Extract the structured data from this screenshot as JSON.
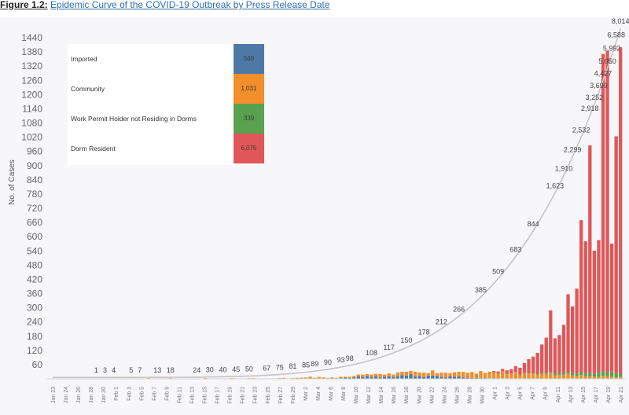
{
  "caption": {
    "fig_num": "Figure 1.2:",
    "fig_title": "Epidemic Curve of the COVID-19 Outbreak by Press Release Date"
  },
  "legend": [
    {
      "label": "Imported",
      "value": "569",
      "color": "#4e79a7"
    },
    {
      "label": "Community",
      "value": "1,031",
      "color": "#f28e2b"
    },
    {
      "label": "Work Permit Holder not Residing in Dorms",
      "value": "339",
      "color": "#59a14f"
    },
    {
      "label": "Dorm Resident",
      "value": "6,075",
      "color": "#e15759"
    }
  ],
  "chart_data": {
    "type": "bar",
    "stacked": true,
    "ylabel": "No. of Cases",
    "ylim": [
      0,
      1480
    ],
    "yticks": [
      60,
      120,
      180,
      240,
      300,
      360,
      420,
      480,
      540,
      600,
      660,
      720,
      780,
      840,
      900,
      960,
      1020,
      1080,
      1140,
      1200,
      1260,
      1320,
      1380,
      1440
    ],
    "grid": false,
    "legend_position": "top-left",
    "x_tick_labels": [
      "Jan 23",
      "Jan 24",
      "Jan 26",
      "Jan 28",
      "Jan 30",
      "Feb 1",
      "Feb 3",
      "Feb 5",
      "Feb 7",
      "Feb 9",
      "Feb 11",
      "Feb 13",
      "Feb 15",
      "Feb 17",
      "Feb 19",
      "Feb 21",
      "Feb 23",
      "Feb 25",
      "Feb 27",
      "Feb 29",
      "Mar 2",
      "Mar 4",
      "Mar 6",
      "Mar 8",
      "Mar 10",
      "Mar 12",
      "Mar 14",
      "Mar 16",
      "Mar 18",
      "Mar 20",
      "Mar 22",
      "Mar 24",
      "Mar 26",
      "Mar 28",
      "Mar 30",
      "Apr 1",
      "Apr 3",
      "Apr 5",
      "Apr 7",
      "Apr 9",
      "Apr 11",
      "Apr 13",
      "Apr 15",
      "Apr 17",
      "Apr 19",
      "Apr 21"
    ],
    "series": [
      {
        "name": "Imported",
        "color": "#4e79a7",
        "values": [
          1,
          0,
          1,
          1,
          1,
          0,
          1,
          1,
          0,
          0,
          0,
          0,
          0,
          0,
          0,
          0,
          0,
          0,
          0,
          0,
          0,
          0,
          0,
          0,
          0,
          0,
          0,
          0,
          0,
          0,
          0,
          0,
          0,
          0,
          0,
          0,
          0,
          0,
          0,
          0,
          0,
          0,
          0,
          0,
          0,
          0,
          0,
          0,
          0,
          0,
          0,
          0,
          0,
          0,
          0,
          0,
          0,
          0,
          0,
          0,
          0,
          0,
          0,
          0,
          1,
          1,
          3,
          5,
          4,
          6,
          10,
          8,
          12,
          8,
          10,
          6,
          9,
          11,
          8,
          12,
          16,
          14,
          20,
          10,
          12,
          8,
          14,
          14,
          12,
          8,
          6,
          10,
          9,
          10,
          5,
          6,
          4,
          4,
          3,
          3,
          2,
          3,
          1,
          2,
          1,
          1,
          1,
          1,
          1,
          1,
          1,
          0,
          1,
          0,
          1,
          0,
          1,
          0,
          0,
          0,
          0,
          0,
          0,
          0,
          0,
          0,
          0,
          0,
          0,
          0,
          0
        ]
      },
      {
        "name": "Community",
        "color": "#f28e2b",
        "values": [
          0,
          0,
          0,
          0,
          0,
          0,
          0,
          0,
          1,
          1,
          2,
          1,
          1,
          1,
          2,
          2,
          0,
          1,
          2,
          2,
          1,
          1,
          3,
          1,
          1,
          2,
          2,
          3,
          2,
          1,
          0,
          1,
          1,
          1,
          1,
          3,
          1,
          2,
          1,
          1,
          1,
          3,
          2,
          1,
          1,
          3,
          3,
          0,
          0,
          1,
          0,
          2,
          3,
          4,
          1,
          3,
          4,
          5,
          6,
          9,
          4,
          8,
          6,
          3,
          5,
          2,
          6,
          4,
          5,
          6,
          8,
          10,
          8,
          10,
          11,
          14,
          9,
          12,
          10,
          15,
          14,
          16,
          13,
          20,
          15,
          18,
          10,
          22,
          12,
          18,
          20,
          14,
          19,
          20,
          24,
          20,
          25,
          18,
          30,
          22,
          28,
          25,
          22,
          30,
          20,
          20,
          28,
          15,
          24,
          22,
          20,
          18,
          20,
          21,
          23,
          15,
          16,
          18,
          21,
          14,
          12,
          16,
          11,
          10,
          9,
          8,
          12,
          10,
          9,
          6,
          8
        ]
      },
      {
        "name": "Work Permit Holder not Residing in Dorms",
        "color": "#59a14f",
        "values": [
          0,
          0,
          0,
          0,
          0,
          0,
          0,
          0,
          0,
          0,
          0,
          0,
          0,
          0,
          0,
          0,
          0,
          0,
          0,
          0,
          0,
          0,
          0,
          0,
          0,
          0,
          0,
          0,
          0,
          0,
          0,
          0,
          0,
          0,
          0,
          0,
          0,
          0,
          0,
          0,
          0,
          0,
          0,
          0,
          0,
          0,
          0,
          0,
          0,
          0,
          0,
          0,
          0,
          0,
          0,
          0,
          0,
          0,
          0,
          0,
          0,
          0,
          0,
          0,
          0,
          0,
          0,
          0,
          0,
          0,
          0,
          0,
          0,
          0,
          0,
          0,
          0,
          0,
          0,
          0,
          0,
          0,
          0,
          0,
          0,
          0,
          0,
          0,
          0,
          0,
          0,
          0,
          0,
          0,
          0,
          0,
          0,
          0,
          0,
          0,
          0,
          0,
          0,
          0,
          0,
          0,
          0,
          1,
          2,
          0,
          3,
          2,
          4,
          3,
          5,
          6,
          8,
          10,
          6,
          12,
          9,
          14,
          10,
          16,
          12,
          18,
          20,
          15,
          22,
          18,
          12
        ]
      },
      {
        "name": "Dorm Resident",
        "color": "#e15759",
        "values": [
          0,
          0,
          0,
          0,
          0,
          0,
          0,
          0,
          0,
          0,
          0,
          0,
          0,
          0,
          0,
          0,
          0,
          0,
          0,
          0,
          0,
          0,
          0,
          0,
          0,
          0,
          0,
          0,
          0,
          0,
          0,
          0,
          0,
          0,
          0,
          0,
          0,
          0,
          0,
          0,
          0,
          0,
          0,
          0,
          0,
          0,
          0,
          0,
          0,
          0,
          0,
          0,
          0,
          0,
          0,
          0,
          0,
          0,
          0,
          0,
          0,
          0,
          0,
          0,
          0,
          0,
          0,
          0,
          0,
          0,
          0,
          0,
          0,
          0,
          0,
          0,
          0,
          0,
          0,
          0,
          0,
          0,
          0,
          0,
          0,
          0,
          0,
          0,
          0,
          0,
          0,
          0,
          0,
          0,
          0,
          0,
          0,
          0,
          0,
          0,
          0,
          5,
          8,
          10,
          15,
          20,
          25,
          30,
          40,
          60,
          70,
          90,
          120,
          150,
          260,
          150,
          160,
          200,
          330,
          280,
          360,
          640,
          560,
          960,
          520,
          560,
          1340,
          1360,
          540,
          1000,
          1380
        ]
      }
    ],
    "cumulative_labels": [
      {
        "text": "1",
        "x": 10
      },
      {
        "text": "3",
        "x": 12
      },
      {
        "text": "4",
        "x": 14
      },
      {
        "text": "5",
        "x": 18
      },
      {
        "text": "7",
        "x": 20
      },
      {
        "text": "13",
        "x": 24
      },
      {
        "text": "18",
        "x": 27
      },
      {
        "text": "24",
        "x": 33
      },
      {
        "text": "30",
        "x": 36
      },
      {
        "text": "40",
        "x": 39
      },
      {
        "text": "45",
        "x": 42
      },
      {
        "text": "50",
        "x": 45
      },
      {
        "text": "67",
        "x": 49
      },
      {
        "text": "75",
        "x": 52
      },
      {
        "text": "81",
        "x": 55
      },
      {
        "text": "85",
        "x": 58
      },
      {
        "text": "89",
        "x": 60
      },
      {
        "text": "90",
        "x": 63
      },
      {
        "text": "93",
        "x": 66
      },
      {
        "text": "98",
        "x": 68
      },
      {
        "text": "108",
        "x": 73
      },
      {
        "text": "117",
        "x": 77
      },
      {
        "text": "150",
        "x": 81
      },
      {
        "text": "178",
        "x": 85
      },
      {
        "text": "212",
        "x": 89
      },
      {
        "text": "266",
        "x": 93
      },
      {
        "text": "385",
        "x": 98
      },
      {
        "text": "509",
        "x": 102
      },
      {
        "text": "683",
        "x": 106
      },
      {
        "text": "844",
        "x": 110
      },
      {
        "text": "1,623",
        "x": 115
      },
      {
        "text": "1,910",
        "x": 117
      },
      {
        "text": "2,299",
        "x": 119
      },
      {
        "text": "2,532",
        "x": 121
      },
      {
        "text": "2,918",
        "x": 123
      },
      {
        "text": "3,252",
        "x": 124
      },
      {
        "text": "3,699",
        "x": 125
      },
      {
        "text": "4,427",
        "x": 126
      },
      {
        "text": "5,050",
        "x": 127
      },
      {
        "text": "5,992",
        "x": 128
      },
      {
        "text": "6,588",
        "x": 129
      },
      {
        "text": "8,014",
        "x": 130
      }
    ]
  }
}
